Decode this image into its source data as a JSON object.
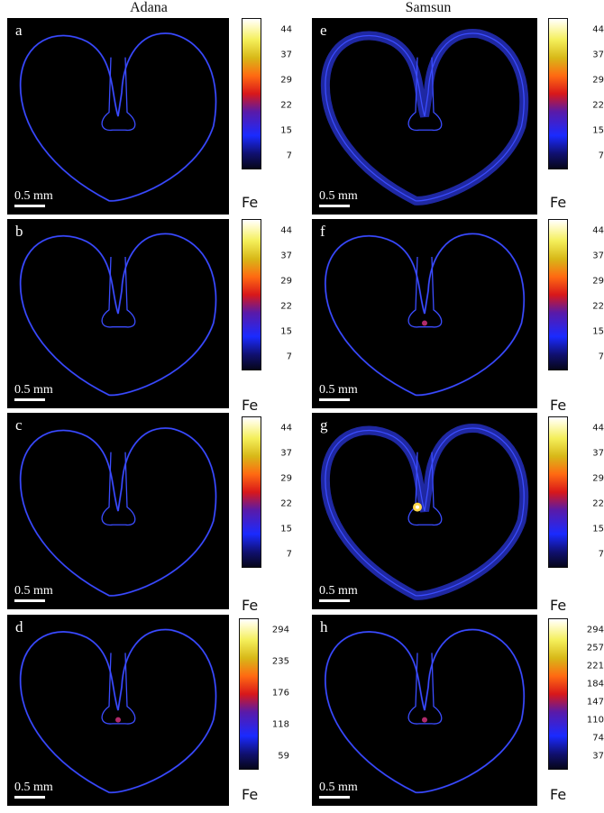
{
  "columns": {
    "left_title": "Adana",
    "right_title": "Samsun"
  },
  "scale_label": "0.5 mm",
  "element_label": "Fe",
  "panels": [
    {
      "label": "a",
      "ticks": [
        "44",
        "37",
        "29",
        "22",
        "15",
        "7"
      ]
    },
    {
      "label": "b",
      "ticks": [
        "44",
        "37",
        "29",
        "22",
        "15",
        "7"
      ]
    },
    {
      "label": "c",
      "ticks": [
        "44",
        "37",
        "29",
        "22",
        "15",
        "7"
      ]
    },
    {
      "label": "d",
      "ticks": [
        "294",
        "235",
        "176",
        "118",
        "59"
      ]
    },
    {
      "label": "e",
      "ticks": [
        "44",
        "37",
        "29",
        "22",
        "15",
        "7"
      ]
    },
    {
      "label": "f",
      "ticks": [
        "44",
        "37",
        "29",
        "22",
        "15",
        "7"
      ]
    },
    {
      "label": "g",
      "ticks": [
        "44",
        "37",
        "29",
        "22",
        "15",
        "7"
      ]
    },
    {
      "label": "h",
      "ticks": [
        "294",
        "257",
        "221",
        "184",
        "147",
        "110",
        "74",
        "37"
      ]
    }
  ],
  "colors": {
    "outline": "#2a36d8",
    "background": "#000000",
    "hotspot": "#ffd84a"
  },
  "colormap": "black-blue-purple-red-orange-yellow-white"
}
